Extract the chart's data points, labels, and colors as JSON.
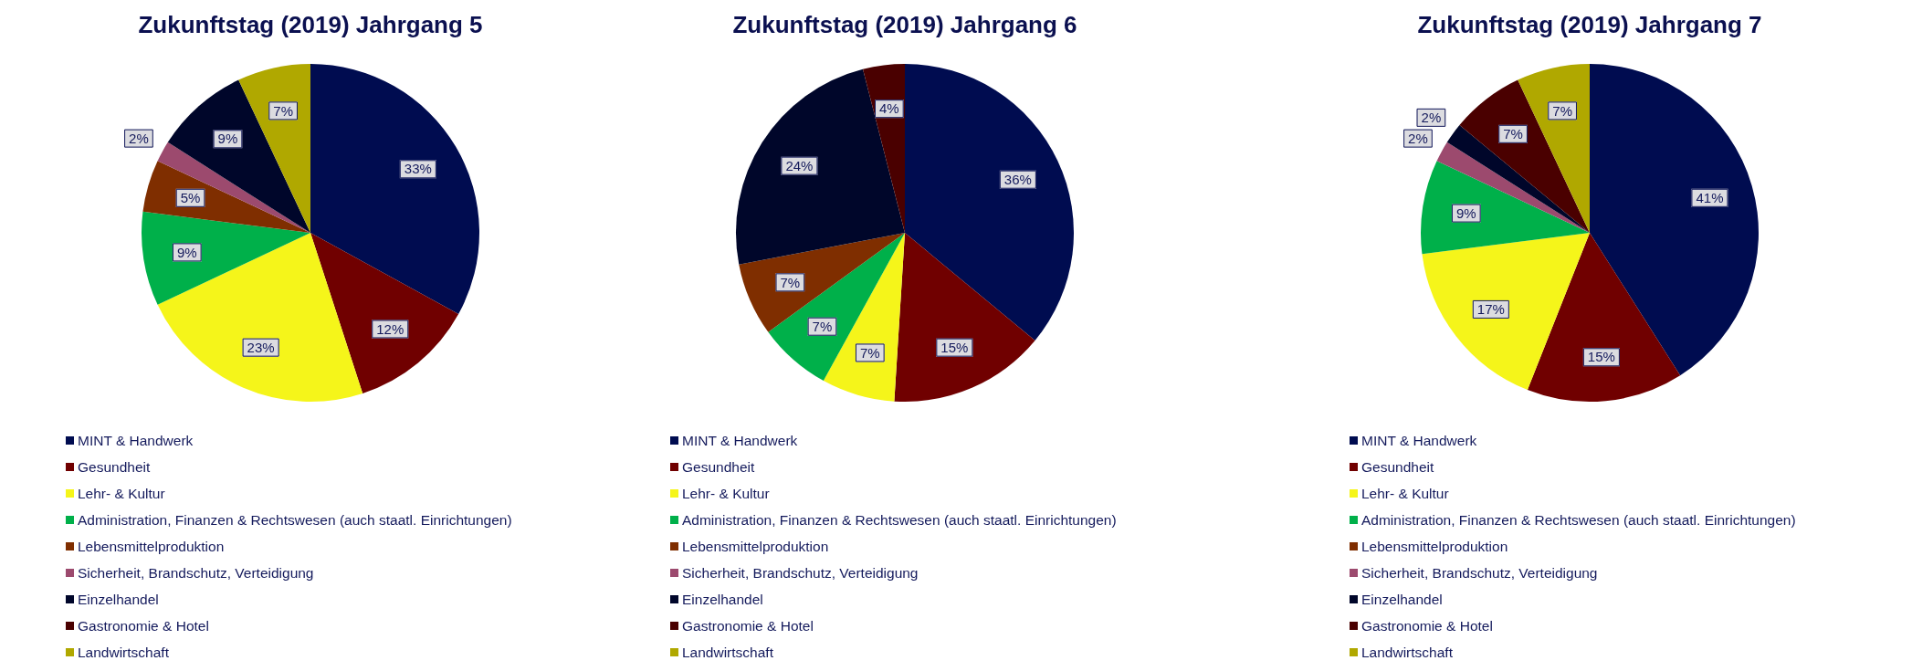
{
  "chart_data": [
    {
      "type": "pie",
      "title": "Zukunftstag (2019) Jahrgang 5",
      "categories": [
        "MINT & Handwerk",
        "Gesundheit",
        "Lehr- & Kultur",
        "Administration, Finanzen & Rechtswesen (auch staatl. Einrichtungen)",
        "Lebensmittelproduktion",
        "Sicherheit, Brandschutz, Verteidigung",
        "Einzelhandel",
        "Gastronomie & Hotel",
        "Landwirtschaft"
      ],
      "values": [
        33,
        12,
        23,
        9,
        5,
        2,
        9,
        0,
        7
      ],
      "value_labels": [
        "33%",
        "12%",
        "23%",
        "9%",
        "5%",
        "2%",
        "9%",
        null,
        "7%"
      ],
      "colors": [
        "#000c50",
        "#700000",
        "#f5f51a",
        "#00b04a",
        "#7f2e00",
        "#9c4a6e",
        "#00062a",
        "#4a0000",
        "#b0a800"
      ],
      "legend": "bottom"
    },
    {
      "type": "pie",
      "title": "Zukunftstag (2019) Jahrgang 6",
      "categories": [
        "MINT & Handwerk",
        "Gesundheit",
        "Lehr- & Kultur",
        "Administration, Finanzen & Rechtswesen (auch staatl. Einrichtungen)",
        "Lebensmittelproduktion",
        "Sicherheit, Brandschutz, Verteidigung",
        "Einzelhandel",
        "Gastronomie & Hotel",
        "Landwirtschaft"
      ],
      "values": [
        36,
        15,
        7,
        7,
        7,
        0,
        24,
        4,
        0
      ],
      "value_labels": [
        "36%",
        "15%",
        "7%",
        "7%",
        "7%",
        null,
        "24%",
        "4%",
        null
      ],
      "colors": [
        "#000c50",
        "#700000",
        "#f5f51a",
        "#00b04a",
        "#7f2e00",
        "#9c4a6e",
        "#00062a",
        "#4a0000",
        "#b0a800"
      ],
      "legend": "bottom"
    },
    {
      "type": "pie",
      "title": "Zukunftstag (2019) Jahrgang 7",
      "categories": [
        "MINT & Handwerk",
        "Gesundheit",
        "Lehr- & Kultur",
        "Administration, Finanzen & Rechtswesen (auch staatl. Einrichtungen)",
        "Lebensmittelproduktion",
        "Sicherheit, Brandschutz, Verteidigung",
        "Einzelhandel",
        "Gastronomie & Hotel",
        "Landwirtschaft"
      ],
      "values": [
        41,
        15,
        17,
        9,
        0,
        2,
        2,
        7,
        7
      ],
      "value_labels": [
        "41%",
        "15%",
        "17%",
        "9%",
        null,
        "2%",
        "2%",
        "7%",
        "7%"
      ],
      "colors": [
        "#000c50",
        "#700000",
        "#f5f51a",
        "#00b04a",
        "#7f2e00",
        "#9c4a6e",
        "#00062a",
        "#4a0000",
        "#b0a800"
      ],
      "legend": "bottom"
    }
  ]
}
